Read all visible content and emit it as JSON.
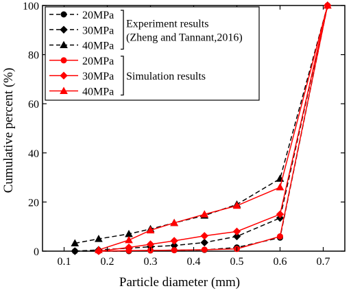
{
  "chart_data": {
    "type": "line",
    "xlabel": "Particle diameter (mm)",
    "ylabel": "Cumulative percent (%)",
    "xlim": [
      0.05,
      0.75
    ],
    "ylim": [
      0,
      100
    ],
    "xticks": [
      "0.1",
      "0.2",
      "0.3",
      "0.4",
      "0.5",
      "0.6",
      "0.7"
    ],
    "xtick_values": [
      0.1,
      0.2,
      0.3,
      0.4,
      0.5,
      0.6,
      0.7
    ],
    "yticks": [
      "0",
      "20",
      "40",
      "60",
      "80",
      "100"
    ],
    "ytick_values": [
      0,
      20,
      40,
      60,
      80,
      100
    ],
    "legend_position": "top-left",
    "legend_groups": [
      {
        "label_lines": [
          "Experiment results",
          "(Zheng and Tannant,2016)"
        ]
      },
      {
        "label_lines": [
          "Simulation results"
        ]
      }
    ],
    "series": [
      {
        "name": "20MPa",
        "group": 0,
        "color": "#000000",
        "dashed": true,
        "marker": "circle",
        "x": [
          0.125,
          0.18,
          0.25,
          0.3,
          0.355,
          0.425,
          0.5,
          0.6,
          0.71
        ],
        "y": [
          0,
          0,
          0,
          0.3,
          0.4,
          0.5,
          1.5,
          5.5,
          100
        ]
      },
      {
        "name": "30MPa",
        "group": 0,
        "color": "#000000",
        "dashed": true,
        "marker": "diamond",
        "x": [
          0.125,
          0.18,
          0.25,
          0.3,
          0.355,
          0.425,
          0.5,
          0.6,
          0.71
        ],
        "y": [
          0,
          0.5,
          1.2,
          1.8,
          2.3,
          3.5,
          6,
          13.5,
          100
        ]
      },
      {
        "name": "40MPa",
        "group": 0,
        "color": "#000000",
        "dashed": true,
        "marker": "triangle",
        "x": [
          0.125,
          0.18,
          0.25,
          0.3,
          0.355,
          0.425,
          0.5,
          0.6,
          0.71
        ],
        "y": [
          3.2,
          5,
          7,
          9,
          11.5,
          14.5,
          19,
          29.5,
          100
        ]
      },
      {
        "name": "20MPa",
        "group": 1,
        "color": "#ff0000",
        "dashed": false,
        "marker": "circle",
        "x": [
          0.18,
          0.25,
          0.3,
          0.355,
          0.425,
          0.5,
          0.6,
          0.71
        ],
        "y": [
          0,
          0.2,
          0.3,
          0.4,
          0.6,
          0.9,
          6,
          100
        ]
      },
      {
        "name": "30MPa",
        "group": 1,
        "color": "#ff0000",
        "dashed": false,
        "marker": "diamond",
        "x": [
          0.18,
          0.25,
          0.3,
          0.355,
          0.425,
          0.5,
          0.6,
          0.71
        ],
        "y": [
          0,
          1.5,
          2.8,
          4.2,
          6.2,
          8,
          15,
          100
        ]
      },
      {
        "name": "40MPa",
        "group": 1,
        "color": "#ff0000",
        "dashed": false,
        "marker": "triangle",
        "x": [
          0.18,
          0.25,
          0.3,
          0.355,
          0.425,
          0.5,
          0.6,
          0.71
        ],
        "y": [
          0.5,
          4.5,
          8.5,
          11.5,
          15,
          18.5,
          26,
          100
        ]
      }
    ]
  }
}
